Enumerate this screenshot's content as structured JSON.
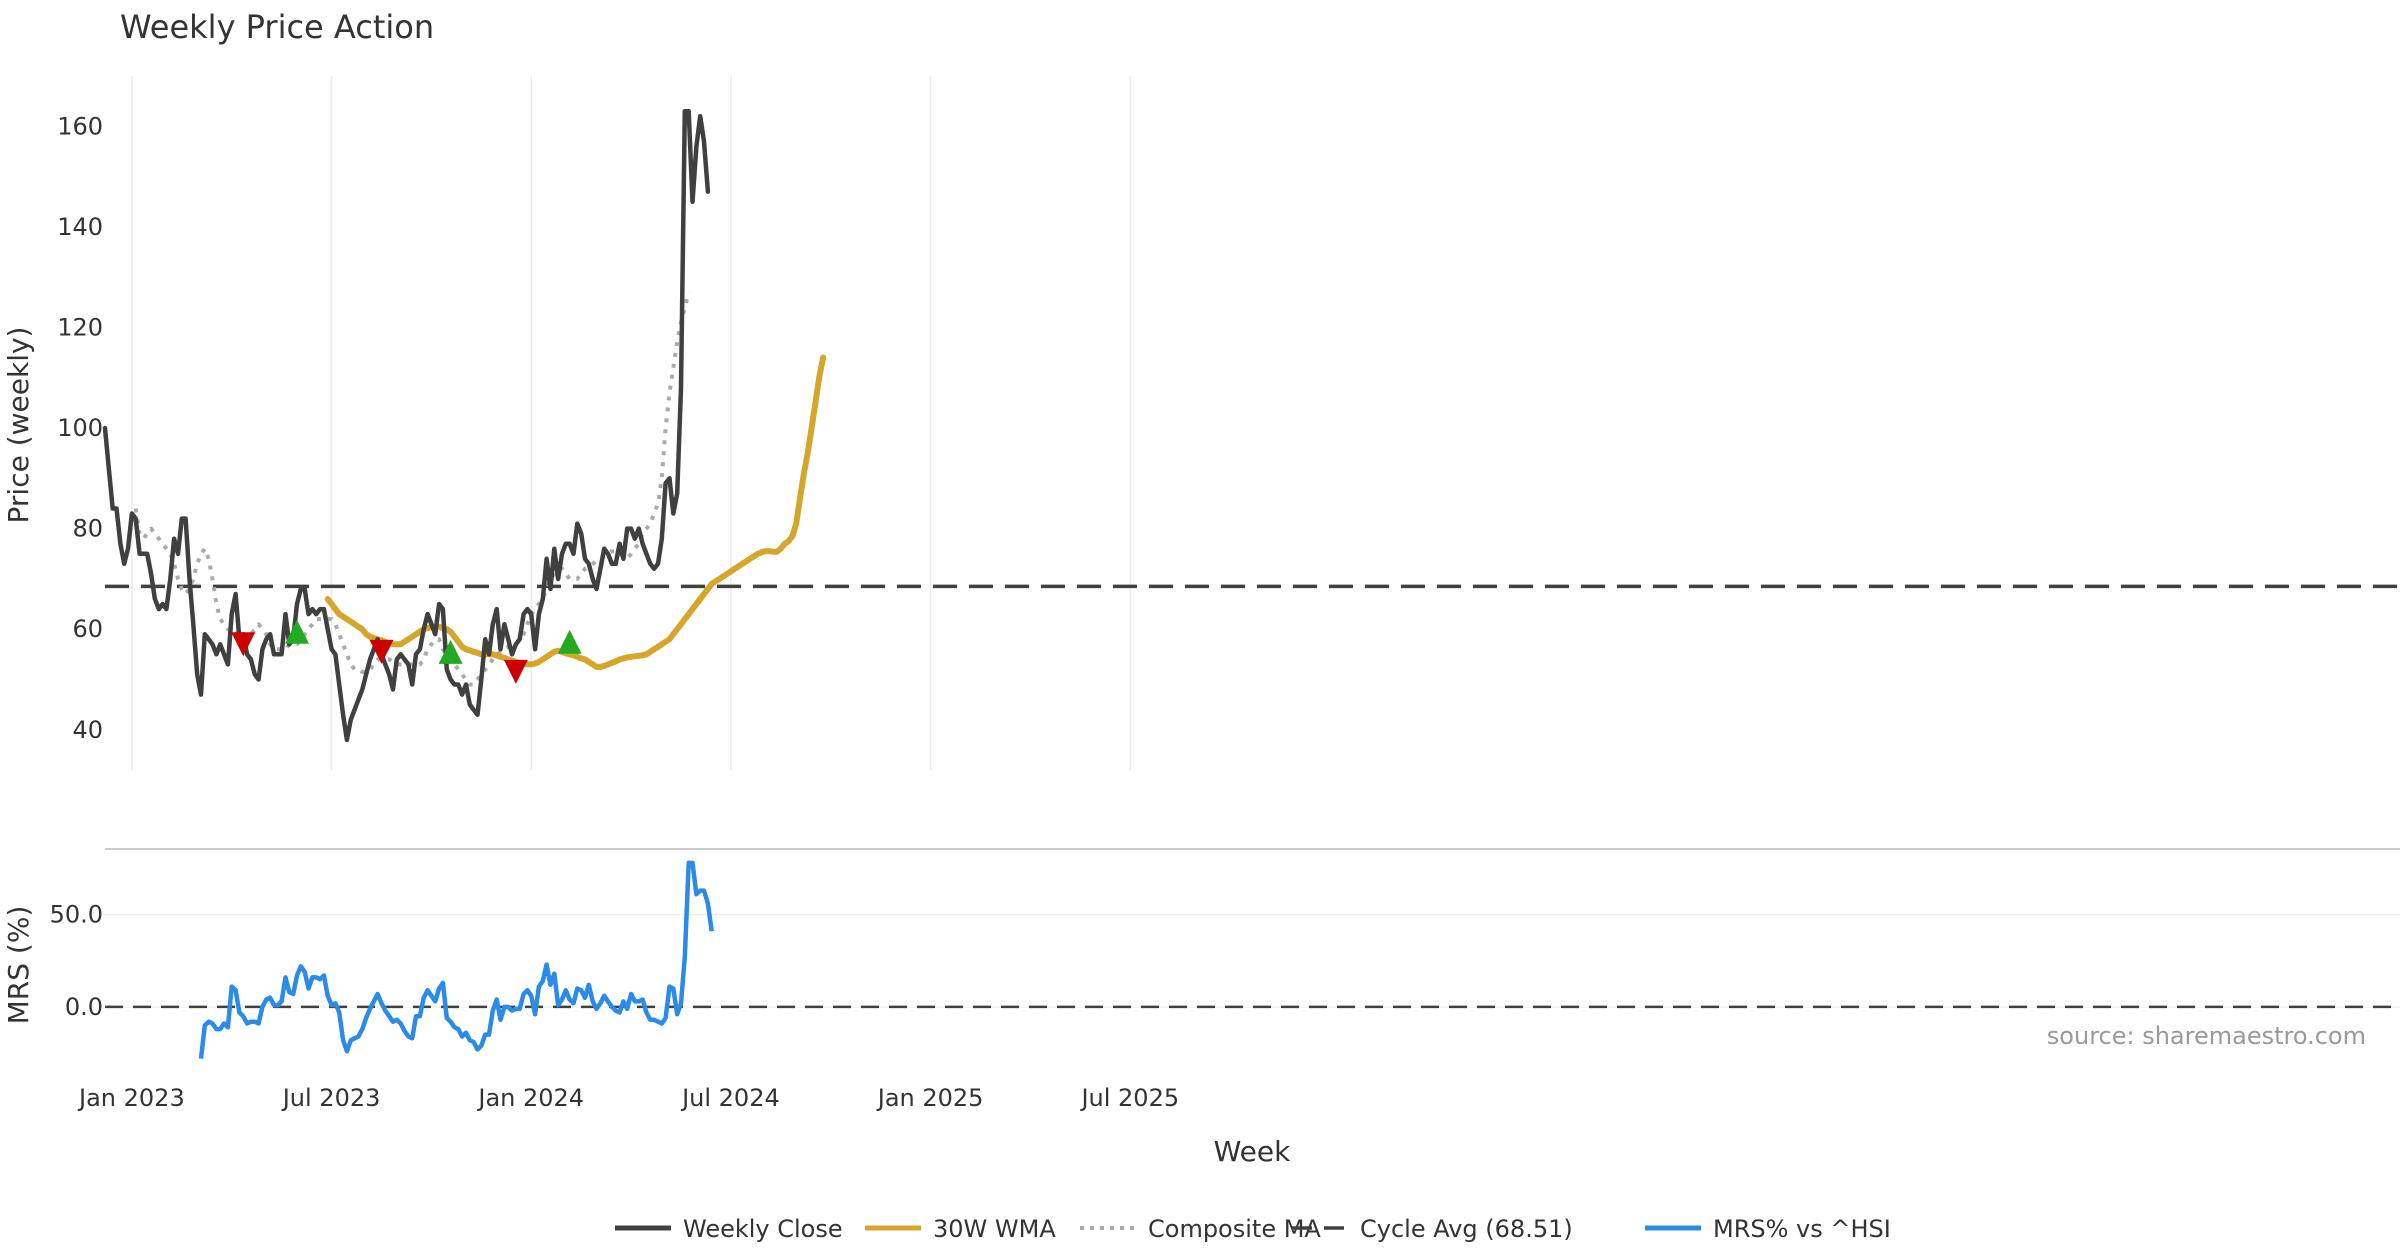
{
  "chart_data": [
    {
      "type": "line",
      "title": "Weekly Price Action",
      "xlabel": "Week",
      "ylabel": "Price (weekly)",
      "ylim": [
        32,
        170
      ],
      "x_ticks": [
        "Jan 2023",
        "Jul 2023",
        "Jan 2024",
        "Jul 2024",
        "Jan 2025",
        "Jul 2025"
      ],
      "x_tick_weeks": [
        7,
        59,
        111,
        163,
        215,
        267
      ],
      "y_ticks": [
        40,
        60,
        80,
        100,
        120,
        140,
        160
      ],
      "grid": true,
      "reference_line": {
        "name": "Cycle Avg (68.51)",
        "value": 68.51
      },
      "series": [
        {
          "name": "Weekly Close",
          "color": "#404040",
          "start_week": 0,
          "values": [
            100,
            92,
            84,
            84,
            77,
            73,
            76,
            83,
            82,
            75,
            75,
            75,
            71,
            66,
            64,
            65,
            64,
            70,
            78,
            75,
            82,
            82,
            70,
            61,
            51,
            47,
            59,
            58,
            57,
            55,
            57,
            55,
            53,
            63,
            67,
            58,
            59,
            55,
            54,
            51,
            50,
            56,
            58,
            59,
            55,
            55,
            55,
            63,
            57,
            58,
            65,
            68,
            68,
            63,
            64,
            63,
            64,
            64,
            60,
            56,
            55,
            49,
            43,
            38,
            42,
            44,
            46,
            48,
            51,
            54,
            56,
            58,
            55,
            53,
            51,
            48,
            54,
            55,
            54,
            53,
            49,
            55,
            56,
            60,
            63,
            61,
            59,
            65,
            64,
            52,
            50,
            49,
            49,
            47,
            49,
            45,
            44,
            43,
            50,
            58,
            55,
            61,
            64,
            56,
            61,
            58,
            55,
            57,
            58,
            63,
            64,
            63,
            56,
            63,
            66,
            74,
            68,
            76,
            70,
            75,
            77,
            77,
            75,
            81,
            79,
            74,
            73,
            70,
            68,
            72,
            76,
            75,
            73,
            73,
            77,
            74,
            80,
            80,
            78,
            80,
            77,
            75,
            73,
            72,
            73,
            78,
            89,
            90,
            83,
            87,
            108,
            163,
            163,
            145,
            156,
            162,
            157,
            147
          ]
        },
        {
          "name": "30W WMA",
          "color": "#D4A72C",
          "start_week": 58,
          "values": [
            66,
            65,
            64,
            63,
            62.5,
            62,
            61.5,
            61,
            60.5,
            60,
            59,
            58.5,
            58.2,
            58,
            57.8,
            57.5,
            57.2,
            57,
            57,
            57,
            57.5,
            58,
            58.5,
            59,
            59.5,
            60,
            60.2,
            60.5,
            60.5,
            60.5,
            60.2,
            60,
            59.5,
            58.5,
            57.5,
            56.5,
            56,
            55.8,
            55.5,
            55.3,
            55,
            55,
            55,
            55,
            54.8,
            54.5,
            54.3,
            54,
            53.8,
            53.5,
            53.3,
            53.2,
            53,
            53,
            53.2,
            53.5,
            54,
            54.5,
            55,
            55.5,
            55.7,
            55.5,
            55.2,
            55,
            54.8,
            54.5,
            54.2,
            54,
            53.5,
            53,
            52.5,
            52.5,
            52.7,
            53,
            53.3,
            53.6,
            54,
            54.2,
            54.4,
            54.5,
            54.6,
            54.7,
            54.8,
            55,
            55.5,
            56,
            56.5,
            57,
            57.5,
            58,
            59,
            60,
            61,
            62,
            63,
            64,
            65,
            66,
            67,
            68,
            69,
            69.5,
            70,
            70.5,
            71,
            71.5,
            72,
            72.5,
            73,
            73.5,
            74,
            74.5,
            75,
            75.3,
            75.5,
            75.5,
            75.4,
            75.4,
            76,
            77,
            77.5,
            78.5,
            81,
            86,
            91,
            95,
            100,
            105,
            110,
            114
          ]
        },
        {
          "name": "Composite MA",
          "color": "#AAAAAA",
          "start_week": 8,
          "values": [
            84,
            79,
            78,
            79,
            80,
            79,
            78,
            77,
            76,
            75,
            73,
            70,
            68,
            67,
            68,
            70,
            73,
            75,
            76,
            74,
            70,
            65,
            62,
            61,
            60,
            60,
            60,
            59,
            58,
            58,
            59,
            60,
            61,
            60,
            59,
            57,
            56,
            56,
            56,
            56,
            57,
            57,
            57,
            58,
            59,
            60,
            61,
            62,
            62,
            62,
            62,
            62,
            61,
            59,
            57,
            55,
            53,
            52,
            52,
            51.5,
            51.5,
            52,
            53,
            54,
            54,
            54,
            54,
            53.5,
            53,
            53,
            53,
            53,
            53,
            53,
            53,
            54,
            56,
            57,
            58,
            58,
            56,
            55,
            54,
            53,
            52,
            51,
            50,
            49,
            49,
            50,
            51,
            52,
            53,
            54,
            55,
            55.5,
            56,
            56.5,
            57,
            57,
            58,
            59,
            61,
            63,
            64,
            65,
            66,
            68,
            70,
            71,
            72,
            72,
            71,
            70,
            70,
            70,
            71,
            72,
            72.5,
            73,
            73.5,
            74,
            74.5,
            75,
            75.5,
            75.5,
            75,
            74.5,
            74,
            75,
            76,
            77,
            79,
            80,
            81,
            83,
            85,
            90,
            100,
            107,
            112,
            117,
            121,
            124,
            127
          ]
        }
      ],
      "markers": [
        {
          "type": "sell",
          "week": 36,
          "value": 57,
          "color": "#CC0000"
        },
        {
          "type": "buy",
          "week": 50,
          "value": 59.5,
          "color": "#22AA22"
        },
        {
          "type": "sell",
          "week": 72,
          "value": 55.5,
          "color": "#CC0000"
        },
        {
          "type": "buy",
          "week": 90,
          "value": 55.5,
          "color": "#22AA22"
        },
        {
          "type": "sell",
          "week": 107,
          "value": 51.5,
          "color": "#CC0000"
        },
        {
          "type": "buy",
          "week": 121,
          "value": 57.5,
          "color": "#22AA22"
        }
      ]
    },
    {
      "type": "line",
      "ylabel": "MRS (%)",
      "ylim": [
        -32,
        85
      ],
      "y_ticks": [
        0,
        50
      ],
      "y_tick_labels": [
        "0.0",
        "50.0"
      ],
      "reference_line": {
        "value": 0
      },
      "series": [
        {
          "name": "MRS% vs ^HSI",
          "color": "#2B8BE6",
          "start_week": 25,
          "values": [
            -28,
            -10,
            -8,
            -9,
            -12,
            -12,
            -9,
            -11,
            11,
            9,
            -3,
            -5,
            -9,
            -8,
            -8,
            -9,
            0,
            4,
            5,
            1,
            1,
            3,
            16,
            8,
            7,
            17,
            22,
            19,
            10,
            16,
            16,
            15,
            17,
            6,
            1,
            2,
            -3,
            -18,
            -24,
            -18,
            -17,
            -16,
            -12,
            -6,
            -1,
            3,
            7,
            2,
            -2,
            -5,
            -8,
            -7,
            -9,
            -13,
            -16,
            -17,
            -5,
            -5,
            5,
            9,
            6,
            3,
            10,
            13,
            -6,
            -8,
            -11,
            -12,
            -16,
            -14,
            -18,
            -19,
            -23,
            -21,
            -15,
            -15,
            -2,
            4,
            -7,
            0,
            0,
            -2,
            -1,
            -1,
            7,
            9,
            6,
            -4,
            11,
            14,
            23,
            12,
            18,
            1,
            4,
            9,
            4,
            2,
            10,
            9,
            5,
            12,
            3,
            -1,
            2,
            6,
            3,
            0,
            -2,
            -3,
            3,
            -1,
            7,
            3,
            3,
            4,
            -3,
            -7,
            -7,
            -8,
            -9,
            -6,
            11,
            10,
            -4,
            2,
            27,
            78,
            78,
            61,
            63,
            63,
            56,
            41
          ]
        }
      ]
    }
  ],
  "legend": {
    "entries": [
      {
        "label": "Weekly Close",
        "style": "solid",
        "color": "#404040"
      },
      {
        "label": "30W WMA",
        "style": "solid",
        "color": "#D4A72C"
      },
      {
        "label": "Composite MA",
        "style": "dotted",
        "color": "#AAAAAA"
      },
      {
        "label": "Cycle Avg (68.51)",
        "style": "dashed",
        "color": "#404040"
      },
      {
        "label": "MRS% vs ^HSI",
        "style": "solid",
        "color": "#2B8BE6"
      }
    ]
  },
  "source_note": "source: sharemaestro.com"
}
